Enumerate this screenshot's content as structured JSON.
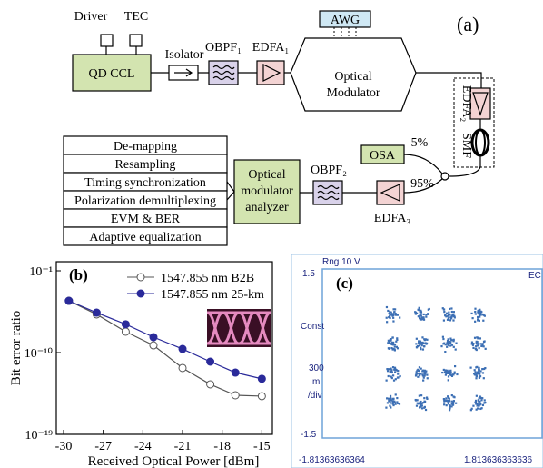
{
  "diagram": {
    "label": "(a)",
    "driver": "Driver",
    "tec": "TEC",
    "laser": "QD CCL",
    "isolator": "Isolator",
    "obpf1": "OBPF₁",
    "edfa1": "EDFA₁",
    "awg": "AWG",
    "modulator": [
      "Optical",
      "Modulator"
    ],
    "edfa2": "EDFA₂",
    "smf": "SMF",
    "osa": "OSA",
    "split_low": "5%",
    "split_high": "95%",
    "obpf2": "OBPF₂",
    "edfa3": "EDFA₃",
    "analyzer": [
      "Optical",
      "modulator",
      "analyzer"
    ],
    "steps": [
      "De-mapping",
      "Resampling",
      "Timing synchronization",
      "Polarization demultiplexing",
      "EVM & BER",
      "Adaptive equalization"
    ]
  },
  "chart_data": {
    "type": "line",
    "label": "(b)",
    "x_label": "Received Optical Power [dBm]",
    "y_label": "Bit error ratio",
    "log_y": true,
    "x": [
      -29.6,
      -27.5,
      -25.3,
      -23.2,
      -21.0,
      -18.9,
      -17.0,
      -15.0
    ],
    "series": [
      {
        "name": "1547.855 nm B2B",
        "color": "#555555",
        "marker_fill": "#ffffff",
        "values": [
          5e-05,
          1.6e-06,
          2e-08,
          6.3e-10,
          2e-12,
          3.2e-14,
          2e-15,
          1.6e-15
        ]
      },
      {
        "name": "1547.855 nm 25-km",
        "color": "#2a2a9a",
        "marker_fill": "#2a2a9a",
        "values": [
          5e-05,
          2.5e-06,
          1.3e-07,
          5e-09,
          2.5e-10,
          1e-11,
          6.3e-13,
          1.3e-13
        ]
      }
    ],
    "xlim": [
      -30.55,
      -14.2
    ],
    "ylim": [
      1e-19,
      1
    ],
    "xticks": [
      -30,
      -27,
      -24,
      -21,
      -18,
      -15
    ],
    "yticks": [
      {
        "value": 0.1,
        "label": "10⁻¹"
      },
      {
        "value": 1e-10,
        "label": "10⁻¹⁰"
      },
      {
        "value": 1e-19,
        "label": "10⁻¹⁹"
      }
    ]
  },
  "constellation": {
    "label": "(c)",
    "range": "Rng 10 V",
    "y_top": "1.5",
    "y_mid": [
      "Const",
      "300",
      "m",
      "/div"
    ],
    "y_bottom": "-1.5",
    "x_left": "-1.81363636364",
    "x_right": "1.813636363636",
    "corner": "EC"
  }
}
